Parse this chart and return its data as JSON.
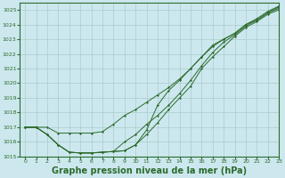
{
  "background_color": "#cce8ee",
  "grid_color": "#aacccc",
  "line_color": "#2d6a2d",
  "xlabel": "Graphe pression niveau de la mer (hPa)",
  "xlabel_fontsize": 7,
  "xlim": [
    -0.5,
    23
  ],
  "ylim": [
    1015,
    1025.5
  ],
  "yticks": [
    1015,
    1016,
    1017,
    1018,
    1019,
    1020,
    1021,
    1022,
    1023,
    1024,
    1025
  ],
  "xticks": [
    0,
    1,
    2,
    3,
    4,
    5,
    6,
    7,
    8,
    9,
    10,
    11,
    12,
    13,
    14,
    15,
    16,
    17,
    18,
    19,
    20,
    21,
    22,
    23
  ],
  "line1": [
    1017.0,
    1017.0,
    1017.0,
    1016.6,
    1016.6,
    1016.6,
    1016.6,
    1016.7,
    1017.2,
    1017.8,
    1018.2,
    1018.7,
    1019.2,
    1019.7,
    1020.3,
    1021.0,
    1021.8,
    1022.6,
    1023.0,
    1023.4,
    1024.0,
    1024.3,
    1024.8,
    1025.2
  ],
  "line2": [
    1017.0,
    1017.0,
    1016.5,
    1015.8,
    1015.3,
    1015.25,
    1015.25,
    1015.3,
    1015.35,
    1016.0,
    1016.5,
    1017.2,
    1017.8,
    1018.5,
    1019.3,
    1020.2,
    1021.2,
    1022.1,
    1022.8,
    1023.3,
    1023.9,
    1024.3,
    1024.8,
    1025.1
  ],
  "line3": [
    1017.0,
    1017.0,
    1016.5,
    1015.8,
    1015.3,
    1015.25,
    1015.25,
    1015.3,
    1015.35,
    1015.4,
    1015.8,
    1016.5,
    1017.3,
    1018.2,
    1019.0,
    1019.8,
    1021.0,
    1021.8,
    1022.5,
    1023.2,
    1023.8,
    1024.2,
    1024.7,
    1025.0
  ],
  "line4": [
    1017.0,
    1017.0,
    1016.5,
    1015.8,
    1015.3,
    1015.25,
    1015.25,
    1015.3,
    1015.35,
    1015.4,
    1015.8,
    1016.8,
    1018.5,
    1019.5,
    1020.2,
    1021.0,
    1021.8,
    1022.5,
    1023.0,
    1023.4,
    1024.0,
    1024.4,
    1024.9,
    1025.25
  ]
}
